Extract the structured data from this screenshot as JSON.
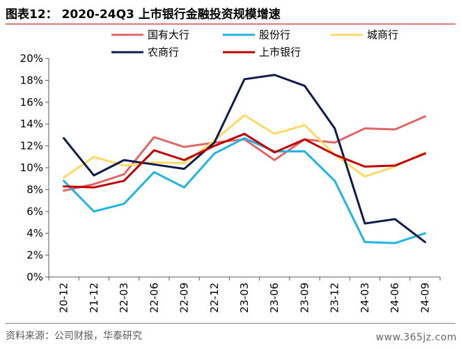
{
  "header": {
    "title": "图表12：  2020-24Q3 上市银行金融投资规模增速"
  },
  "footer": {
    "source": "资料来源：公司财报，华泰研究",
    "watermark": "www.365jz.com"
  },
  "chart_data": {
    "type": "line",
    "title": "图表12：  2020-24Q3 上市银行金融投资规模增速",
    "xlabel": "",
    "ylabel": "",
    "categories": [
      "20-12",
      "21-12",
      "22-03",
      "22-06",
      "22-09",
      "22-12",
      "23-03",
      "23-06",
      "23-09",
      "23-12",
      "24-03",
      "24-06",
      "24-09"
    ],
    "ylim": [
      0,
      20
    ],
    "yticks": [
      0,
      2,
      4,
      6,
      8,
      10,
      12,
      14,
      16,
      18,
      20
    ],
    "ytick_labels": [
      "0%",
      "2%",
      "4%",
      "6%",
      "8%",
      "10%",
      "12%",
      "14%",
      "16%",
      "18%",
      "20%"
    ],
    "grid": false,
    "legend_position": "top",
    "series": [
      {
        "name": "国有大行",
        "color": "#e06666",
        "values": [
          7.9,
          8.5,
          9.4,
          12.8,
          11.9,
          12.3,
          12.6,
          10.7,
          12.6,
          12.3,
          13.6,
          13.5,
          14.7
        ]
      },
      {
        "name": "股份行",
        "color": "#1fb3e8",
        "values": [
          8.8,
          6.0,
          6.7,
          9.6,
          8.2,
          11.3,
          12.7,
          11.5,
          11.5,
          8.8,
          3.2,
          3.1,
          4.0
        ]
      },
      {
        "name": "城商行",
        "color": "#ffd966",
        "values": [
          9.1,
          11.0,
          10.2,
          10.5,
          10.4,
          12.5,
          14.8,
          13.1,
          13.9,
          11.2,
          9.2,
          10.1,
          11.4
        ]
      },
      {
        "name": "农商行",
        "color": "#0d1b4c",
        "values": [
          12.7,
          9.3,
          10.7,
          10.3,
          9.9,
          12.3,
          18.1,
          18.5,
          17.5,
          13.6,
          4.9,
          5.3,
          3.2
        ]
      },
      {
        "name": "上市银行",
        "color": "#c00000",
        "values": [
          8.3,
          8.2,
          8.8,
          11.6,
          10.7,
          12.0,
          13.1,
          11.4,
          12.6,
          11.2,
          10.1,
          10.2,
          11.3
        ]
      }
    ]
  }
}
